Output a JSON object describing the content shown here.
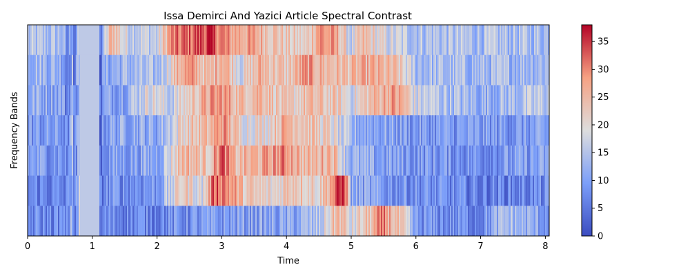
{
  "chart_data": {
    "type": "heatmap",
    "title": "Issa Demirci And Yazici Article Spectral Contrast",
    "xlabel": "Time",
    "ylabel": "Frequency Bands",
    "xlim": [
      0,
      8.06
    ],
    "x_ticks": [
      0,
      1,
      2,
      3,
      4,
      5,
      6,
      7,
      8
    ],
    "n_bands": 7,
    "colormap": "coolwarm",
    "colorbar": {
      "vmin": 0,
      "vmax": 38,
      "ticks": [
        0,
        5,
        10,
        15,
        20,
        25,
        30,
        35
      ]
    },
    "band_profiles": [
      {
        "band": 7,
        "note": "top band",
        "anchors": [
          [
            0,
            14
          ],
          [
            0.55,
            14
          ],
          [
            0.6,
            5
          ],
          [
            0.7,
            14
          ],
          [
            0.72,
            3
          ],
          [
            0.8,
            16
          ],
          [
            1.1,
            16
          ],
          [
            1.12,
            4
          ],
          [
            1.2,
            16
          ],
          [
            1.3,
            27
          ],
          [
            1.5,
            18
          ],
          [
            2.0,
            16
          ],
          [
            2.2,
            29
          ],
          [
            2.6,
            33
          ],
          [
            2.8,
            35
          ],
          [
            3.1,
            28
          ],
          [
            3.5,
            27
          ],
          [
            4.0,
            22
          ],
          [
            4.3,
            20
          ],
          [
            4.5,
            30
          ],
          [
            4.8,
            26
          ],
          [
            5.0,
            16
          ],
          [
            5.2,
            24
          ],
          [
            5.5,
            18
          ],
          [
            6.0,
            15
          ],
          [
            7.0,
            14
          ],
          [
            8.06,
            14
          ]
        ]
      },
      {
        "band": 6,
        "anchors": [
          [
            0,
            14
          ],
          [
            0.55,
            12
          ],
          [
            0.6,
            5
          ],
          [
            0.7,
            14
          ],
          [
            0.72,
            3
          ],
          [
            0.8,
            16
          ],
          [
            1.1,
            16
          ],
          [
            1.12,
            4
          ],
          [
            1.2,
            11
          ],
          [
            1.5,
            13
          ],
          [
            2.0,
            13
          ],
          [
            2.4,
            28
          ],
          [
            2.6,
            27
          ],
          [
            2.8,
            22
          ],
          [
            3.0,
            29
          ],
          [
            3.3,
            18
          ],
          [
            3.6,
            26
          ],
          [
            4.0,
            22
          ],
          [
            4.3,
            28
          ],
          [
            4.6,
            25
          ],
          [
            5.0,
            24
          ],
          [
            5.3,
            26
          ],
          [
            5.7,
            23
          ],
          [
            6.0,
            14
          ],
          [
            7.0,
            13
          ],
          [
            8.06,
            14
          ]
        ]
      },
      {
        "band": 5,
        "anchors": [
          [
            0,
            12
          ],
          [
            0.55,
            11
          ],
          [
            0.6,
            5
          ],
          [
            0.7,
            14
          ],
          [
            0.72,
            3
          ],
          [
            0.8,
            16
          ],
          [
            1.1,
            16
          ],
          [
            1.12,
            4
          ],
          [
            1.2,
            10
          ],
          [
            1.5,
            12
          ],
          [
            1.9,
            20
          ],
          [
            2.2,
            16
          ],
          [
            2.5,
            22
          ],
          [
            2.8,
            27
          ],
          [
            3.0,
            29
          ],
          [
            3.3,
            24
          ],
          [
            3.6,
            27
          ],
          [
            4.0,
            20
          ],
          [
            4.3,
            24
          ],
          [
            4.8,
            22
          ],
          [
            5.0,
            18
          ],
          [
            5.3,
            24
          ],
          [
            5.6,
            28
          ],
          [
            5.8,
            26
          ],
          [
            6.0,
            17
          ],
          [
            7.0,
            12
          ],
          [
            8.06,
            16
          ]
        ]
      },
      {
        "band": 4,
        "anchors": [
          [
            0,
            9
          ],
          [
            0.55,
            9
          ],
          [
            0.6,
            5
          ],
          [
            0.7,
            14
          ],
          [
            0.72,
            3
          ],
          [
            0.8,
            16
          ],
          [
            1.1,
            16
          ],
          [
            1.12,
            4
          ],
          [
            1.2,
            10
          ],
          [
            1.6,
            12
          ],
          [
            2.0,
            11
          ],
          [
            2.4,
            22
          ],
          [
            2.8,
            24
          ],
          [
            3.0,
            30
          ],
          [
            3.3,
            20
          ],
          [
            3.7,
            21
          ],
          [
            4.0,
            27
          ],
          [
            4.3,
            24
          ],
          [
            4.7,
            20
          ],
          [
            5.0,
            12
          ],
          [
            5.4,
            11
          ],
          [
            6.0,
            9
          ],
          [
            7.0,
            9
          ],
          [
            8.06,
            9
          ]
        ]
      },
      {
        "band": 3,
        "anchors": [
          [
            0,
            10
          ],
          [
            0.55,
            9
          ],
          [
            0.6,
            5
          ],
          [
            0.7,
            14
          ],
          [
            0.72,
            3
          ],
          [
            0.8,
            16
          ],
          [
            1.1,
            16
          ],
          [
            1.12,
            4
          ],
          [
            1.2,
            9
          ],
          [
            1.6,
            10
          ],
          [
            2.0,
            11
          ],
          [
            2.4,
            26
          ],
          [
            2.8,
            23
          ],
          [
            3.0,
            33
          ],
          [
            3.2,
            24
          ],
          [
            3.6,
            26
          ],
          [
            4.0,
            30
          ],
          [
            4.3,
            24
          ],
          [
            4.7,
            27
          ],
          [
            5.0,
            12
          ],
          [
            5.4,
            10
          ],
          [
            6.0,
            9
          ],
          [
            7.0,
            8
          ],
          [
            8.06,
            10
          ]
        ]
      },
      {
        "band": 2,
        "anchors": [
          [
            0,
            7
          ],
          [
            0.55,
            6
          ],
          [
            0.6,
            5
          ],
          [
            0.7,
            14
          ],
          [
            0.72,
            3
          ],
          [
            0.8,
            16
          ],
          [
            1.1,
            16
          ],
          [
            1.12,
            4
          ],
          [
            1.2,
            8
          ],
          [
            1.6,
            8
          ],
          [
            2.0,
            9
          ],
          [
            2.4,
            23
          ],
          [
            2.7,
            18
          ],
          [
            2.9,
            34
          ],
          [
            3.1,
            30
          ],
          [
            3.4,
            22
          ],
          [
            3.8,
            20
          ],
          [
            4.1,
            25
          ],
          [
            4.5,
            21
          ],
          [
            4.9,
            37
          ],
          [
            5.0,
            11
          ],
          [
            5.5,
            9
          ],
          [
            6.0,
            8
          ],
          [
            7.0,
            6
          ],
          [
            8.06,
            7
          ]
        ]
      },
      {
        "band": 1,
        "note": "bottom band",
        "anchors": [
          [
            0,
            7
          ],
          [
            0.55,
            7
          ],
          [
            0.6,
            5
          ],
          [
            0.7,
            14
          ],
          [
            0.72,
            3
          ],
          [
            0.8,
            16
          ],
          [
            1.1,
            16
          ],
          [
            1.12,
            4
          ],
          [
            1.2,
            7
          ],
          [
            2.0,
            7
          ],
          [
            2.5,
            8
          ],
          [
            3.0,
            9
          ],
          [
            3.5,
            10
          ],
          [
            4.0,
            10
          ],
          [
            4.5,
            14
          ],
          [
            4.8,
            26
          ],
          [
            5.0,
            18
          ],
          [
            5.3,
            24
          ],
          [
            5.5,
            30
          ],
          [
            5.8,
            20
          ],
          [
            6.0,
            8
          ],
          [
            7.0,
            7
          ],
          [
            7.4,
            14
          ],
          [
            8.06,
            9
          ]
        ]
      }
    ]
  }
}
